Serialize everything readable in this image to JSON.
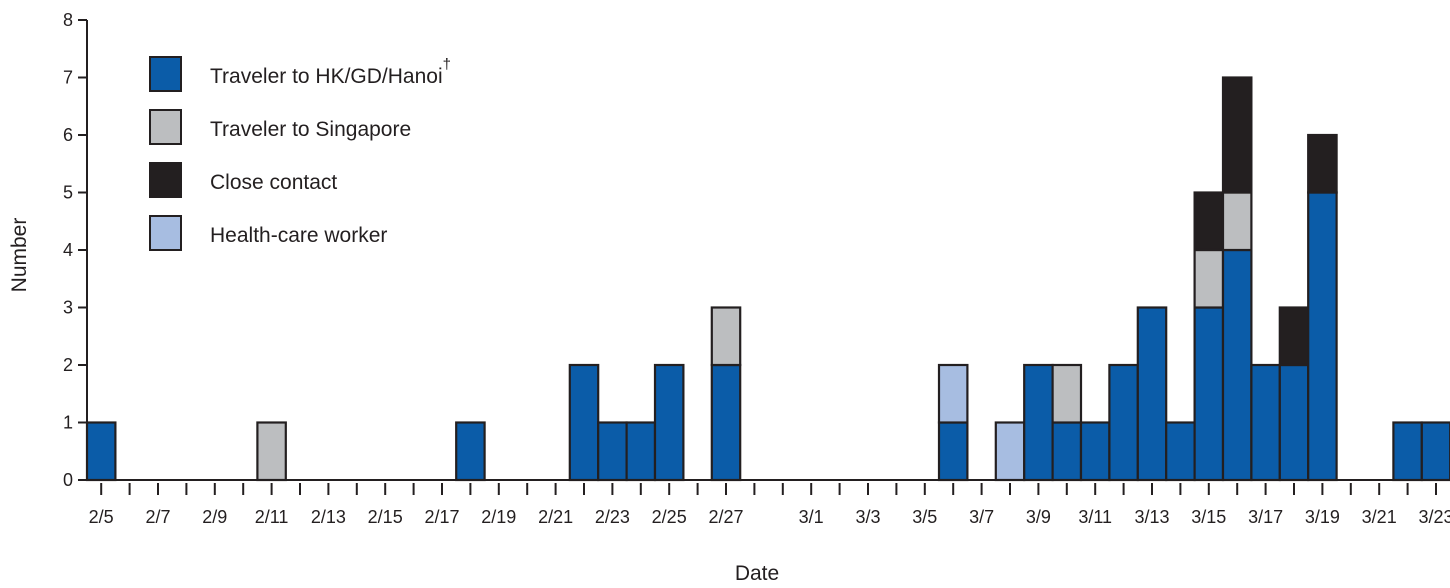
{
  "chart_data": {
    "type": "bar",
    "stacked": true,
    "title": "",
    "xlabel": "Date",
    "ylabel": "Number",
    "ylim": [
      0,
      8
    ],
    "yticks": [
      0,
      1,
      2,
      3,
      4,
      5,
      6,
      7,
      8
    ],
    "categories": [
      "2/5",
      "2/6",
      "2/7",
      "2/8",
      "2/9",
      "2/10",
      "2/11",
      "2/12",
      "2/13",
      "2/14",
      "2/15",
      "2/16",
      "2/17",
      "2/18",
      "2/19",
      "2/20",
      "2/21",
      "2/22",
      "2/23",
      "2/24",
      "2/25",
      "2/26",
      "2/27",
      "2/28",
      "2/29",
      "3/1",
      "3/2",
      "3/3",
      "3/4",
      "3/5",
      "3/6",
      "3/7",
      "3/8",
      "3/9",
      "3/10",
      "3/11",
      "3/12",
      "3/13",
      "3/14",
      "3/15",
      "3/16",
      "3/17",
      "3/18",
      "3/19",
      "3/20",
      "3/21",
      "3/22",
      "3/23"
    ],
    "xtick_labels": [
      "2/5",
      "2/7",
      "2/9",
      "2/11",
      "2/13",
      "2/15",
      "2/17",
      "2/19",
      "2/21",
      "2/23",
      "2/25",
      "2/27",
      "3/1",
      "3/3",
      "3/5",
      "3/7",
      "3/9",
      "3/11",
      "3/13",
      "3/15",
      "3/17",
      "3/19",
      "3/21",
      "3/23"
    ],
    "legend": {
      "placement": "top-left"
    },
    "series": [
      {
        "name": "Traveler to HK/GD/Hanoi",
        "name_marker": "†",
        "color": "#0b5ca8",
        "values": [
          1,
          0,
          0,
          0,
          0,
          0,
          0,
          0,
          0,
          0,
          0,
          0,
          0,
          1,
          0,
          0,
          0,
          2,
          1,
          1,
          2,
          0,
          2,
          0,
          0,
          0,
          0,
          0,
          0,
          0,
          1,
          0,
          0,
          2,
          1,
          1,
          2,
          3,
          1,
          3,
          4,
          2,
          2,
          5,
          0,
          0,
          1,
          1
        ]
      },
      {
        "name": "Traveler to Singapore",
        "color": "#bcbec0",
        "values": [
          0,
          0,
          0,
          0,
          0,
          0,
          1,
          0,
          0,
          0,
          0,
          0,
          0,
          0,
          0,
          0,
          0,
          0,
          0,
          0,
          0,
          0,
          1,
          0,
          0,
          0,
          0,
          0,
          0,
          0,
          0,
          0,
          0,
          0,
          1,
          0,
          0,
          0,
          0,
          1,
          1,
          0,
          0,
          0,
          0,
          0,
          0,
          0
        ]
      },
      {
        "name": "Close contact",
        "color": "#231f20",
        "values": [
          0,
          0,
          0,
          0,
          0,
          0,
          0,
          0,
          0,
          0,
          0,
          0,
          0,
          0,
          0,
          0,
          0,
          0,
          0,
          0,
          0,
          0,
          0,
          0,
          0,
          0,
          0,
          0,
          0,
          0,
          0,
          0,
          0,
          0,
          0,
          0,
          0,
          0,
          0,
          1,
          2,
          0,
          1,
          1,
          0,
          0,
          0,
          0
        ]
      },
      {
        "name": "Health-care worker",
        "color": "#a7bde1",
        "values": [
          0,
          0,
          0,
          0,
          0,
          0,
          0,
          0,
          0,
          0,
          0,
          0,
          0,
          0,
          0,
          0,
          0,
          0,
          0,
          0,
          0,
          0,
          0,
          0,
          0,
          0,
          0,
          0,
          0,
          0,
          1,
          0,
          1,
          0,
          0,
          0,
          0,
          0,
          0,
          0,
          0,
          0,
          0,
          0,
          0,
          0,
          0,
          0
        ]
      }
    ]
  }
}
